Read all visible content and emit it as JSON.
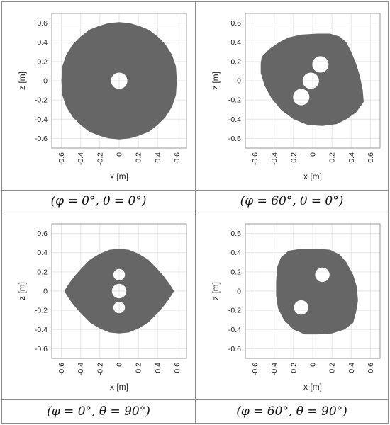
{
  "colors": {
    "region": "#666666",
    "hole": "#ffffff",
    "grid": "#e6e6e6",
    "axes": "#999999"
  },
  "shared_axes": {
    "xlabel": "x [m]",
    "ylabel": "z [m]",
    "xlim": [
      -0.7,
      0.7
    ],
    "ylim": [
      -0.7,
      0.7
    ],
    "xticks": [
      -0.6,
      -0.4,
      -0.2,
      0,
      0.2,
      0.4,
      0.6
    ],
    "yticks": [
      -0.6,
      -0.4,
      -0.2,
      0,
      0.2,
      0.4,
      0.6
    ],
    "xtick_labels": [
      "-0.6",
      "-0.4",
      "-0.2",
      "0",
      "0.2",
      "0.4",
      "0.6"
    ],
    "ytick_labels": [
      "-0.6",
      "-0.4",
      "-0.2",
      "0",
      "0.2",
      "0.4",
      "0.6"
    ],
    "grid": true
  },
  "chart_data": [
    {
      "type": "heatmap",
      "caption": "(φ = 0°, θ = 0°)",
      "region": [
        [
          0,
          0.61
        ],
        [
          0.11,
          0.6
        ],
        [
          0.21,
          0.57
        ],
        [
          0.31,
          0.53
        ],
        [
          0.4,
          0.46
        ],
        [
          0.48,
          0.38
        ],
        [
          0.55,
          0.27
        ],
        [
          0.59,
          0.15
        ],
        [
          0.6,
          0
        ],
        [
          0.59,
          -0.15
        ],
        [
          0.55,
          -0.27
        ],
        [
          0.48,
          -0.38
        ],
        [
          0.4,
          -0.46
        ],
        [
          0.31,
          -0.53
        ],
        [
          0.21,
          -0.57
        ],
        [
          0.11,
          -0.6
        ],
        [
          0,
          -0.61
        ],
        [
          -0.11,
          -0.6
        ],
        [
          -0.21,
          -0.57
        ],
        [
          -0.31,
          -0.53
        ],
        [
          -0.4,
          -0.46
        ],
        [
          -0.48,
          -0.38
        ],
        [
          -0.55,
          -0.27
        ],
        [
          -0.59,
          -0.15
        ],
        [
          -0.6,
          0
        ],
        [
          -0.59,
          0.15
        ],
        [
          -0.55,
          0.27
        ],
        [
          -0.48,
          0.38
        ],
        [
          -0.4,
          0.46
        ],
        [
          -0.31,
          0.53
        ],
        [
          -0.21,
          0.57
        ],
        [
          -0.11,
          0.6
        ]
      ],
      "holes": [
        {
          "cx": 0,
          "cy": 0,
          "r": 0.085
        }
      ]
    },
    {
      "type": "heatmap",
      "caption": "(φ = 60°, θ = 0°)",
      "region": [
        [
          -0.53,
          0.25
        ],
        [
          -0.45,
          0.33
        ],
        [
          -0.35,
          0.4
        ],
        [
          -0.25,
          0.45
        ],
        [
          -0.12,
          0.48
        ],
        [
          0.05,
          0.49
        ],
        [
          0.18,
          0.49
        ],
        [
          0.28,
          0.46
        ],
        [
          0.35,
          0.4
        ],
        [
          0.4,
          0.3
        ],
        [
          0.45,
          0.18
        ],
        [
          0.49,
          0.05
        ],
        [
          0.52,
          -0.1
        ],
        [
          0.53,
          -0.22
        ],
        [
          0.45,
          -0.33
        ],
        [
          0.35,
          -0.4
        ],
        [
          0.25,
          -0.45
        ],
        [
          0.1,
          -0.47
        ],
        [
          -0.05,
          -0.46
        ],
        [
          -0.2,
          -0.4
        ],
        [
          -0.33,
          -0.3
        ],
        [
          -0.43,
          -0.18
        ],
        [
          -0.5,
          -0.05
        ],
        [
          -0.54,
          0.08
        ],
        [
          -0.54,
          0.18
        ]
      ],
      "holes": [
        {
          "cx": 0.08,
          "cy": 0.17,
          "r": 0.085
        },
        {
          "cx": -0.02,
          "cy": 0.0,
          "r": 0.085
        },
        {
          "cx": -0.12,
          "cy": -0.17,
          "r": 0.085
        }
      ]
    },
    {
      "type": "heatmap",
      "caption": "(φ = 0°, θ = 90°)",
      "region": [
        [
          0,
          0.44
        ],
        [
          0.1,
          0.43
        ],
        [
          0.2,
          0.39
        ],
        [
          0.3,
          0.33
        ],
        [
          0.38,
          0.25
        ],
        [
          0.46,
          0.16
        ],
        [
          0.52,
          0.08
        ],
        [
          0.57,
          0
        ],
        [
          0.52,
          -0.08
        ],
        [
          0.46,
          -0.16
        ],
        [
          0.38,
          -0.25
        ],
        [
          0.3,
          -0.33
        ],
        [
          0.2,
          -0.39
        ],
        [
          0.1,
          -0.43
        ],
        [
          0,
          -0.44
        ],
        [
          -0.1,
          -0.43
        ],
        [
          -0.2,
          -0.39
        ],
        [
          -0.3,
          -0.33
        ],
        [
          -0.38,
          -0.25
        ],
        [
          -0.46,
          -0.16
        ],
        [
          -0.52,
          -0.08
        ],
        [
          -0.57,
          0
        ],
        [
          -0.52,
          0.08
        ],
        [
          -0.46,
          0.16
        ],
        [
          -0.38,
          0.25
        ],
        [
          -0.3,
          0.33
        ],
        [
          -0.2,
          0.39
        ],
        [
          -0.1,
          0.43
        ]
      ],
      "holes": [
        {
          "cx": 0,
          "cy": 0.17,
          "r": 0.06
        },
        {
          "cx": 0,
          "cy": 0.0,
          "r": 0.075
        },
        {
          "cx": 0,
          "cy": -0.17,
          "r": 0.06
        }
      ]
    },
    {
      "type": "heatmap",
      "caption": "(φ = 60°, θ = 90°)",
      "region": [
        [
          -0.33,
          0.35
        ],
        [
          -0.25,
          0.42
        ],
        [
          -0.12,
          0.44
        ],
        [
          0.05,
          0.44
        ],
        [
          0.18,
          0.43
        ],
        [
          0.28,
          0.38
        ],
        [
          0.35,
          0.3
        ],
        [
          0.42,
          0.17
        ],
        [
          0.46,
          0.04
        ],
        [
          0.47,
          -0.1
        ],
        [
          0.45,
          -0.22
        ],
        [
          0.42,
          -0.33
        ],
        [
          0.33,
          -0.4
        ],
        [
          0.2,
          -0.44
        ],
        [
          0.05,
          -0.45
        ],
        [
          -0.08,
          -0.45
        ],
        [
          -0.2,
          -0.4
        ],
        [
          -0.3,
          -0.3
        ],
        [
          -0.36,
          -0.18
        ],
        [
          -0.38,
          -0.05
        ],
        [
          -0.38,
          0.1
        ],
        [
          -0.37,
          0.25
        ]
      ],
      "holes": [
        {
          "cx": 0.1,
          "cy": 0.17,
          "r": 0.075
        },
        {
          "cx": -0.12,
          "cy": -0.17,
          "r": 0.075
        }
      ]
    }
  ]
}
